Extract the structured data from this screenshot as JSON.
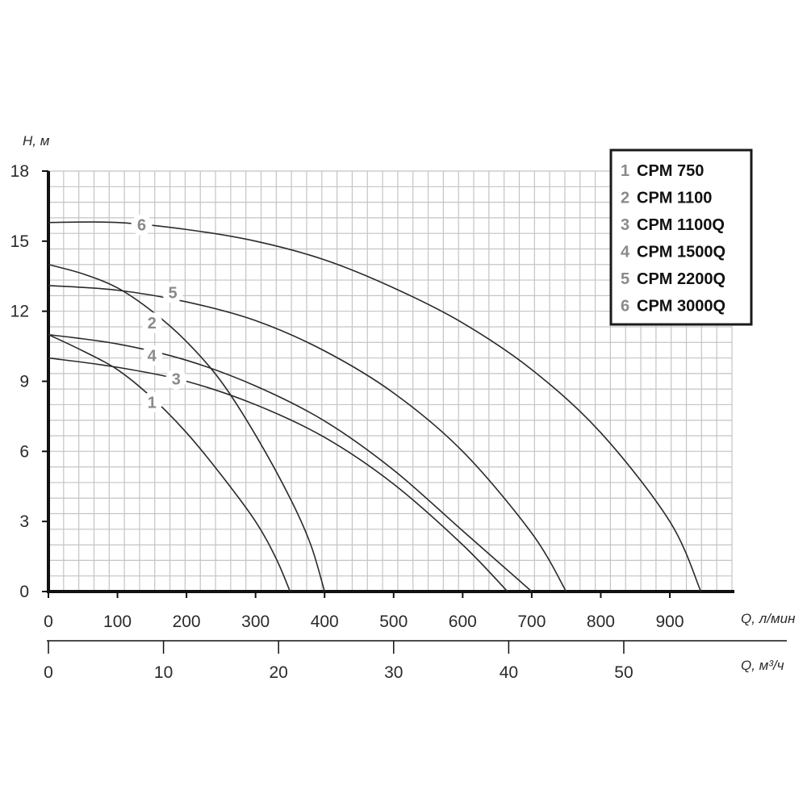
{
  "chart_data": {
    "type": "line",
    "ylabel": "H, м",
    "xlabel": "Q, л/мин",
    "x2label": "Q, м³/ч",
    "xlim": [
      0,
      1000
    ],
    "ylim": [
      0,
      18
    ],
    "x_ticks": [
      0,
      100,
      200,
      300,
      400,
      500,
      600,
      700,
      800,
      900
    ],
    "y_ticks": [
      0,
      3,
      6,
      9,
      12,
      15,
      18
    ],
    "x2_ticks": [
      0,
      10,
      20,
      30,
      40,
      50
    ],
    "x2_factor": 16.6667,
    "grid": true,
    "legend_position": "top-right",
    "series": [
      {
        "name": "CPM 750",
        "label": "1",
        "x": [
          0,
          50,
          100,
          150,
          200,
          250,
          300,
          330,
          350
        ],
        "y": [
          11.0,
          10.3,
          9.5,
          8.3,
          6.8,
          5.0,
          3.0,
          1.4,
          0
        ]
      },
      {
        "name": "CPM 1100",
        "label": "2",
        "x": [
          0,
          50,
          100,
          150,
          200,
          250,
          300,
          350,
          380,
          400
        ],
        "y": [
          14.0,
          13.6,
          13.0,
          12.0,
          10.7,
          9.0,
          6.7,
          4.0,
          2.0,
          0
        ]
      },
      {
        "name": "CPM 1100Q",
        "label": "3",
        "x": [
          0,
          100,
          200,
          300,
          400,
          500,
          600,
          665
        ],
        "y": [
          10.0,
          9.6,
          9.0,
          8.0,
          6.6,
          4.6,
          2.0,
          0
        ]
      },
      {
        "name": "CPM 1500Q",
        "label": "4",
        "x": [
          0,
          100,
          200,
          300,
          400,
          500,
          600,
          700
        ],
        "y": [
          11.0,
          10.6,
          9.9,
          8.8,
          7.3,
          5.2,
          2.6,
          0
        ]
      },
      {
        "name": "CPM 2200Q",
        "label": "5",
        "x": [
          0,
          100,
          200,
          300,
          400,
          500,
          600,
          700,
          750
        ],
        "y": [
          13.1,
          12.9,
          12.4,
          11.6,
          10.3,
          8.5,
          6.0,
          2.5,
          0
        ]
      },
      {
        "name": "CPM 3000Q",
        "label": "6",
        "x": [
          0,
          100,
          200,
          300,
          400,
          500,
          600,
          700,
          800,
          900,
          945
        ],
        "y": [
          15.8,
          15.8,
          15.5,
          15.0,
          14.2,
          13.0,
          11.5,
          9.5,
          6.8,
          3.0,
          0
        ]
      }
    ],
    "label_positions": [
      {
        "x": 150,
        "y": 8.1
      },
      {
        "x": 150,
        "y": 11.5
      },
      {
        "x": 185,
        "y": 9.1
      },
      {
        "x": 150,
        "y": 10.1
      },
      {
        "x": 180,
        "y": 12.8
      },
      {
        "x": 135,
        "y": 15.7
      }
    ]
  }
}
